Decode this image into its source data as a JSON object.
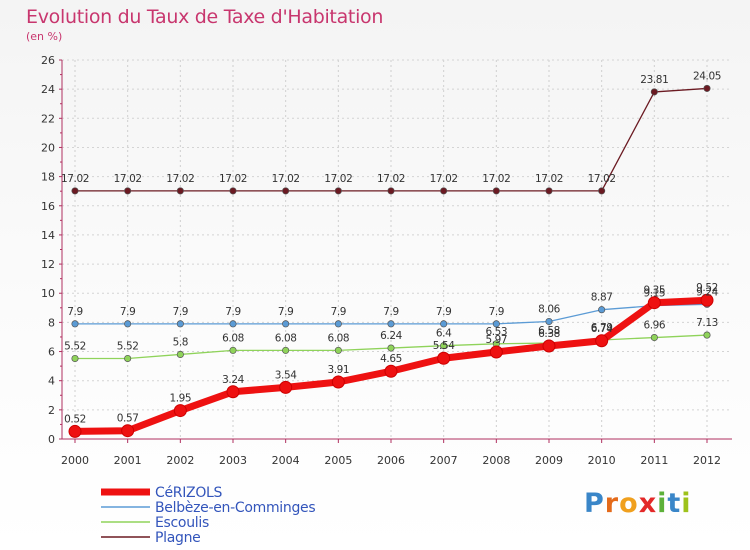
{
  "chart_data": {
    "type": "line",
    "title": "Evolution du Taux de Taxe d'Habitation",
    "subtitle": "(en %)",
    "xlabel": "",
    "ylabel": "",
    "categories": [
      "2000",
      "2001",
      "2002",
      "2003",
      "2004",
      "2005",
      "2006",
      "2007",
      "2008",
      "2009",
      "2010",
      "2011",
      "2012"
    ],
    "ylim": [
      0,
      26
    ],
    "yticks": [
      0,
      2,
      4,
      6,
      8,
      10,
      12,
      14,
      16,
      18,
      20,
      22,
      24,
      26
    ],
    "grid": true,
    "legend_position": "bottom-left",
    "series": [
      {
        "name": "CéRIZOLS",
        "color": "#ee1111",
        "values": [
          0.52,
          0.57,
          1.95,
          3.24,
          3.54,
          3.91,
          4.65,
          5.54,
          5.97,
          6.38,
          6.74,
          9.35,
          9.52
        ],
        "labels": [
          "0.52",
          "0.57",
          "1.95",
          "3.24",
          "3.54",
          "3.91",
          "4.65",
          "5.54",
          "5.97",
          "6.38",
          "6.74",
          "9.35",
          "9.52"
        ]
      },
      {
        "name": "Belbèze-en-Comminges",
        "color": "#5b9bd5",
        "values": [
          7.9,
          7.9,
          7.9,
          7.9,
          7.9,
          7.9,
          7.9,
          7.9,
          7.9,
          8.06,
          8.87,
          9.15,
          9.24
        ],
        "labels": [
          "7.9",
          "7.9",
          "7.9",
          "7.9",
          "7.9",
          "7.9",
          "7.9",
          "7.9",
          "7.9",
          "8.06",
          "8.87",
          "9.15",
          "9.24"
        ]
      },
      {
        "name": "Escoulis",
        "color": "#8fd35a",
        "values": [
          5.52,
          5.52,
          5.8,
          6.08,
          6.08,
          6.08,
          6.24,
          6.4,
          6.53,
          6.58,
          6.79,
          6.96,
          7.13
        ],
        "labels": [
          "5.52",
          "5.52",
          "5.8",
          "6.08",
          "6.08",
          "6.08",
          "6.24",
          "6.4",
          "6.53",
          "6.58",
          "6.79",
          "6.96",
          "7.13"
        ]
      },
      {
        "name": "Plagne",
        "color": "#6b1a22",
        "values": [
          17.02,
          17.02,
          17.02,
          17.02,
          17.02,
          17.02,
          17.02,
          17.02,
          17.02,
          17.02,
          17.02,
          23.81,
          24.05
        ],
        "labels": [
          "17.02",
          "17.02",
          "17.02",
          "17.02",
          "17.02",
          "17.02",
          "17.02",
          "17.02",
          "17.02",
          "17.02",
          "17.02",
          "23.81",
          "24.05"
        ]
      }
    ]
  },
  "logo": {
    "text": "Proxiti",
    "colors": [
      "#3a86c8",
      "#e46a1a",
      "#f0a01e",
      "#e32828",
      "#5db13a",
      "#3a86c8",
      "#9ec21b"
    ]
  }
}
